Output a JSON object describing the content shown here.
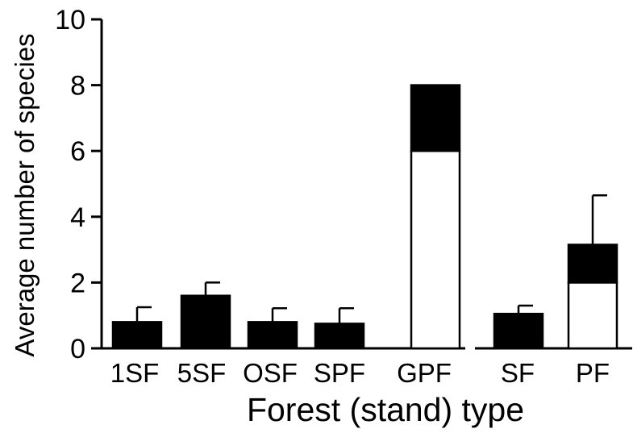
{
  "chart_data": {
    "type": "bar",
    "title": "",
    "xlabel": "Forest (stand) type",
    "ylabel": "Average number of species",
    "ylim": [
      0,
      10
    ],
    "yticks": [
      0,
      2,
      4,
      6,
      8,
      10
    ],
    "grid": false,
    "legend": "none",
    "groups": [
      {
        "categories": [
          "1SF",
          "5SF",
          "OSF",
          "SPF",
          "GPF"
        ]
      },
      {
        "categories": [
          "SF",
          "PF"
        ]
      }
    ],
    "categories": [
      "1SF",
      "5SF",
      "OSF",
      "SPF",
      "GPF",
      "SF",
      "PF"
    ],
    "series": [
      {
        "values": [
          0,
          0,
          0,
          0,
          6.0,
          0,
          2.0
        ],
        "color": "#ffffff"
      },
      {
        "values": [
          0.8,
          1.6,
          0.8,
          0.75,
          2.0,
          1.05,
          1.15
        ],
        "color": "#000000"
      }
    ],
    "totals": [
      0.8,
      1.6,
      0.8,
      0.75,
      8.0,
      1.05,
      3.15
    ],
    "error_upper": [
      1.25,
      2.0,
      1.22,
      1.22,
      null,
      1.3,
      4.65
    ]
  }
}
